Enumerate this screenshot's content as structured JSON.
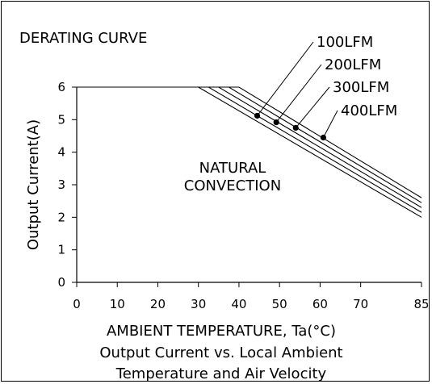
{
  "chart_data": {
    "type": "line",
    "title": "DERATING CURVE",
    "annotation": "NATURAL\nCONVECTION",
    "xlabel": "AMBIENT TEMPERATURE, Ta(°C)",
    "ylabel": "Output Current(A)",
    "caption_line1": "Output Current vs. Local Ambient",
    "caption_line2": "Temperature and Air Velocity",
    "xlim": [
      0,
      85
    ],
    "ylim": [
      0,
      6
    ],
    "xticks": [
      0,
      10,
      20,
      30,
      40,
      50,
      60,
      70,
      85
    ],
    "yticks": [
      0,
      1,
      2,
      3,
      4,
      5,
      6
    ],
    "grid": false,
    "series": [
      {
        "name": "NATURAL CONVECTION",
        "x": [
          0,
          30,
          85
        ],
        "y": [
          6,
          6,
          2.0
        ]
      },
      {
        "name": "100LFM",
        "x": [
          0,
          32.5,
          85
        ],
        "y": [
          6,
          6,
          2.15
        ],
        "marker_point": [
          44.5,
          5.12
        ]
      },
      {
        "name": "200LFM",
        "x": [
          0,
          35,
          85
        ],
        "y": [
          6,
          6,
          2.3
        ],
        "marker_point": [
          49.2,
          4.92
        ]
      },
      {
        "name": "300LFM",
        "x": [
          0,
          37.5,
          85
        ],
        "y": [
          6,
          6,
          2.45
        ],
        "marker_point": [
          54.0,
          4.75
        ]
      },
      {
        "name": "400LFM",
        "x": [
          0,
          40,
          85
        ],
        "y": [
          6,
          6,
          2.6
        ],
        "marker_point": [
          60.8,
          4.45
        ]
      }
    ]
  }
}
